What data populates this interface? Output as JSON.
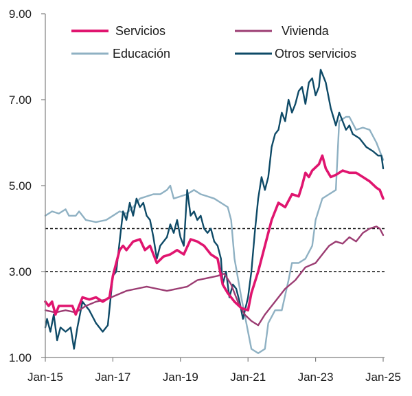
{
  "chart_data": {
    "type": "line",
    "title": "",
    "xlabel": "",
    "ylabel": "",
    "ylim": [
      1.0,
      9.0
    ],
    "xlim": [
      2015.0,
      2025.0
    ],
    "y_ticks": [
      "1.00",
      "3.00",
      "5.00",
      "7.00",
      "9.00"
    ],
    "x_ticks": [
      {
        "label": "Jan-15",
        "value": 2015
      },
      {
        "label": "Jan-17",
        "value": 2017
      },
      {
        "label": "Jan-19",
        "value": 2019
      },
      {
        "label": "Jan-21",
        "value": 2021
      },
      {
        "label": "Jan-23",
        "value": 2023
      },
      {
        "label": "Jan-25",
        "value": 2025
      }
    ],
    "reference_lines": [
      3.0,
      4.0
    ],
    "grid": false,
    "legend_position": "top",
    "series": [
      {
        "name": "Servicios",
        "color": "#e0156f",
        "points": [
          [
            2015.0,
            2.3
          ],
          [
            2015.1,
            2.2
          ],
          [
            2015.2,
            2.3
          ],
          [
            2015.3,
            2.0
          ],
          [
            2015.4,
            2.2
          ],
          [
            2015.6,
            2.2
          ],
          [
            2015.8,
            2.2
          ],
          [
            2015.9,
            2.0
          ],
          [
            2016.0,
            2.2
          ],
          [
            2016.1,
            2.4
          ],
          [
            2016.3,
            2.35
          ],
          [
            2016.5,
            2.4
          ],
          [
            2016.7,
            2.3
          ],
          [
            2016.9,
            2.4
          ],
          [
            2017.0,
            2.9
          ],
          [
            2017.1,
            3.2
          ],
          [
            2017.2,
            3.5
          ],
          [
            2017.3,
            3.6
          ],
          [
            2017.4,
            3.5
          ],
          [
            2017.6,
            3.7
          ],
          [
            2017.8,
            3.75
          ],
          [
            2017.95,
            3.5
          ],
          [
            2018.1,
            3.6
          ],
          [
            2018.3,
            3.2
          ],
          [
            2018.5,
            3.35
          ],
          [
            2018.7,
            3.4
          ],
          [
            2018.9,
            3.5
          ],
          [
            2019.1,
            3.4
          ],
          [
            2019.3,
            3.75
          ],
          [
            2019.5,
            3.7
          ],
          [
            2019.7,
            3.6
          ],
          [
            2019.9,
            3.4
          ],
          [
            2020.1,
            3.3
          ],
          [
            2020.25,
            2.7
          ],
          [
            2020.4,
            2.5
          ],
          [
            2020.6,
            2.3
          ],
          [
            2020.8,
            2.15
          ],
          [
            2021.0,
            2.1
          ],
          [
            2021.1,
            2.5
          ],
          [
            2021.3,
            3.0
          ],
          [
            2021.5,
            3.6
          ],
          [
            2021.7,
            4.2
          ],
          [
            2021.9,
            4.6
          ],
          [
            2022.1,
            4.5
          ],
          [
            2022.3,
            4.8
          ],
          [
            2022.5,
            4.75
          ],
          [
            2022.6,
            5.0
          ],
          [
            2022.7,
            5.3
          ],
          [
            2022.8,
            5.2
          ],
          [
            2022.9,
            5.35
          ],
          [
            2023.1,
            5.5
          ],
          [
            2023.2,
            5.7
          ],
          [
            2023.3,
            5.4
          ],
          [
            2023.45,
            5.2
          ],
          [
            2023.6,
            5.25
          ],
          [
            2023.8,
            5.35
          ],
          [
            2024.0,
            5.3
          ],
          [
            2024.2,
            5.3
          ],
          [
            2024.4,
            5.2
          ],
          [
            2024.6,
            5.1
          ],
          [
            2024.8,
            4.95
          ],
          [
            2024.9,
            4.9
          ],
          [
            2025.0,
            4.7
          ]
        ]
      },
      {
        "name": "Vivienda",
        "color": "#9b3c72",
        "points": [
          [
            2015.0,
            2.1
          ],
          [
            2015.3,
            2.05
          ],
          [
            2015.6,
            2.1
          ],
          [
            2015.9,
            2.05
          ],
          [
            2016.2,
            2.2
          ],
          [
            2016.5,
            2.3
          ],
          [
            2016.8,
            2.35
          ],
          [
            2017.1,
            2.45
          ],
          [
            2017.4,
            2.55
          ],
          [
            2017.7,
            2.6
          ],
          [
            2018.0,
            2.65
          ],
          [
            2018.3,
            2.6
          ],
          [
            2018.6,
            2.55
          ],
          [
            2018.9,
            2.6
          ],
          [
            2019.2,
            2.65
          ],
          [
            2019.5,
            2.8
          ],
          [
            2019.8,
            2.85
          ],
          [
            2020.1,
            2.9
          ],
          [
            2020.3,
            2.95
          ],
          [
            2020.5,
            2.7
          ],
          [
            2020.7,
            2.3
          ],
          [
            2020.9,
            2.0
          ],
          [
            2021.1,
            1.85
          ],
          [
            2021.3,
            1.75
          ],
          [
            2021.5,
            2.0
          ],
          [
            2021.8,
            2.3
          ],
          [
            2022.1,
            2.6
          ],
          [
            2022.4,
            2.8
          ],
          [
            2022.7,
            3.1
          ],
          [
            2023.0,
            3.2
          ],
          [
            2023.2,
            3.4
          ],
          [
            2023.4,
            3.6
          ],
          [
            2023.6,
            3.7
          ],
          [
            2023.8,
            3.65
          ],
          [
            2024.0,
            3.8
          ],
          [
            2024.2,
            3.7
          ],
          [
            2024.4,
            3.9
          ],
          [
            2024.6,
            4.0
          ],
          [
            2024.8,
            4.05
          ],
          [
            2024.9,
            4.0
          ],
          [
            2025.0,
            3.85
          ]
        ]
      },
      {
        "name": "Educación",
        "color": "#8fb1c3",
        "points": [
          [
            2015.0,
            4.3
          ],
          [
            2015.2,
            4.4
          ],
          [
            2015.4,
            4.35
          ],
          [
            2015.6,
            4.45
          ],
          [
            2015.7,
            4.3
          ],
          [
            2015.9,
            4.3
          ],
          [
            2016.0,
            4.4
          ],
          [
            2016.2,
            4.2
          ],
          [
            2016.5,
            4.15
          ],
          [
            2016.8,
            4.2
          ],
          [
            2017.0,
            4.3
          ],
          [
            2017.2,
            4.4
          ],
          [
            2017.4,
            4.35
          ],
          [
            2017.6,
            4.5
          ],
          [
            2017.8,
            4.7
          ],
          [
            2018.0,
            4.75
          ],
          [
            2018.2,
            4.8
          ],
          [
            2018.4,
            4.8
          ],
          [
            2018.6,
            4.9
          ],
          [
            2018.7,
            5.0
          ],
          [
            2018.8,
            4.7
          ],
          [
            2019.0,
            4.75
          ],
          [
            2019.2,
            4.8
          ],
          [
            2019.4,
            4.9
          ],
          [
            2019.6,
            4.8
          ],
          [
            2019.8,
            4.75
          ],
          [
            2020.0,
            4.7
          ],
          [
            2020.2,
            4.6
          ],
          [
            2020.4,
            4.5
          ],
          [
            2020.5,
            4.2
          ],
          [
            2020.6,
            3.3
          ],
          [
            2020.8,
            2.4
          ],
          [
            2021.0,
            1.6
          ],
          [
            2021.1,
            1.2
          ],
          [
            2021.3,
            1.1
          ],
          [
            2021.5,
            1.2
          ],
          [
            2021.6,
            1.8
          ],
          [
            2021.8,
            2.1
          ],
          [
            2022.0,
            2.1
          ],
          [
            2022.2,
            2.8
          ],
          [
            2022.3,
            3.2
          ],
          [
            2022.5,
            3.2
          ],
          [
            2022.7,
            3.3
          ],
          [
            2022.9,
            3.6
          ],
          [
            2023.0,
            4.2
          ],
          [
            2023.2,
            4.7
          ],
          [
            2023.4,
            4.8
          ],
          [
            2023.6,
            4.9
          ],
          [
            2023.7,
            6.5
          ],
          [
            2023.9,
            6.6
          ],
          [
            2024.0,
            6.6
          ],
          [
            2024.2,
            6.3
          ],
          [
            2024.4,
            6.35
          ],
          [
            2024.6,
            6.3
          ],
          [
            2024.8,
            6.0
          ],
          [
            2024.9,
            5.8
          ],
          [
            2025.0,
            5.6
          ]
        ]
      },
      {
        "name": "Otros servicios",
        "color": "#0e4a67",
        "points": [
          [
            2015.0,
            1.7
          ],
          [
            2015.05,
            1.9
          ],
          [
            2015.15,
            1.6
          ],
          [
            2015.25,
            2.0
          ],
          [
            2015.35,
            1.4
          ],
          [
            2015.45,
            1.7
          ],
          [
            2015.6,
            1.6
          ],
          [
            2015.75,
            1.7
          ],
          [
            2015.85,
            1.2
          ],
          [
            2015.95,
            1.7
          ],
          [
            2016.1,
            2.3
          ],
          [
            2016.3,
            2.1
          ],
          [
            2016.5,
            1.8
          ],
          [
            2016.7,
            1.6
          ],
          [
            2016.85,
            1.75
          ],
          [
            2017.0,
            2.9
          ],
          [
            2017.1,
            3.0
          ],
          [
            2017.2,
            3.7
          ],
          [
            2017.3,
            4.4
          ],
          [
            2017.4,
            4.2
          ],
          [
            2017.5,
            4.6
          ],
          [
            2017.6,
            4.3
          ],
          [
            2017.7,
            4.7
          ],
          [
            2017.8,
            4.5
          ],
          [
            2017.9,
            4.6
          ],
          [
            2018.0,
            4.3
          ],
          [
            2018.1,
            4.2
          ],
          [
            2018.2,
            3.8
          ],
          [
            2018.3,
            3.3
          ],
          [
            2018.4,
            3.6
          ],
          [
            2018.5,
            3.7
          ],
          [
            2018.6,
            3.8
          ],
          [
            2018.7,
            4.1
          ],
          [
            2018.8,
            3.9
          ],
          [
            2018.9,
            4.2
          ],
          [
            2019.0,
            3.8
          ],
          [
            2019.1,
            3.6
          ],
          [
            2019.2,
            4.9
          ],
          [
            2019.3,
            4.3
          ],
          [
            2019.4,
            4.4
          ],
          [
            2019.5,
            4.2
          ],
          [
            2019.6,
            4.3
          ],
          [
            2019.7,
            4.0
          ],
          [
            2019.8,
            3.9
          ],
          [
            2019.9,
            4.0
          ],
          [
            2020.0,
            3.7
          ],
          [
            2020.1,
            3.6
          ],
          [
            2020.2,
            3.3
          ],
          [
            2020.25,
            2.7
          ],
          [
            2020.35,
            3.0
          ],
          [
            2020.45,
            2.4
          ],
          [
            2020.55,
            2.7
          ],
          [
            2020.65,
            2.6
          ],
          [
            2020.75,
            2.3
          ],
          [
            2020.85,
            1.9
          ],
          [
            2021.0,
            2.4
          ],
          [
            2021.1,
            3.0
          ],
          [
            2021.2,
            3.9
          ],
          [
            2021.3,
            4.7
          ],
          [
            2021.4,
            5.2
          ],
          [
            2021.5,
            4.9
          ],
          [
            2021.6,
            5.2
          ],
          [
            2021.7,
            5.9
          ],
          [
            2021.8,
            6.2
          ],
          [
            2021.9,
            6.3
          ],
          [
            2022.0,
            6.7
          ],
          [
            2022.1,
            6.5
          ],
          [
            2022.2,
            7.0
          ],
          [
            2022.3,
            6.7
          ],
          [
            2022.4,
            6.9
          ],
          [
            2022.5,
            7.2
          ],
          [
            2022.6,
            7.3
          ],
          [
            2022.7,
            6.9
          ],
          [
            2022.8,
            7.4
          ],
          [
            2022.9,
            7.5
          ],
          [
            2023.0,
            7.1
          ],
          [
            2023.1,
            7.3
          ],
          [
            2023.15,
            7.7
          ],
          [
            2023.3,
            7.4
          ],
          [
            2023.45,
            6.8
          ],
          [
            2023.6,
            6.4
          ],
          [
            2023.7,
            6.7
          ],
          [
            2023.8,
            6.5
          ],
          [
            2023.9,
            6.3
          ],
          [
            2024.0,
            6.4
          ],
          [
            2024.1,
            6.2
          ],
          [
            2024.3,
            6.1
          ],
          [
            2024.5,
            5.9
          ],
          [
            2024.7,
            5.8
          ],
          [
            2024.85,
            5.7
          ],
          [
            2024.95,
            5.7
          ],
          [
            2025.0,
            5.4
          ]
        ]
      }
    ]
  }
}
